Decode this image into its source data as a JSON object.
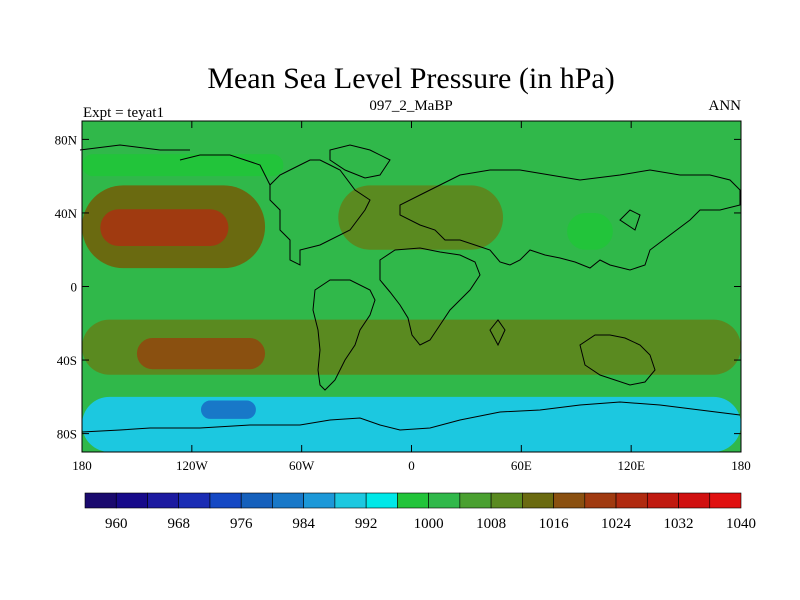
{
  "title": "Mean Sea Level Pressure (in hPa)",
  "left_label": "Expt = teyat1",
  "center_label": "097_2_MaBP",
  "right_label": "ANN",
  "chart_data": {
    "type": "contour-map",
    "variable": "Mean Sea Level Pressure",
    "units": "hPa",
    "xlim": [
      -180,
      180
    ],
    "ylim": [
      -90,
      90
    ],
    "x_ticks": [
      {
        "value": -180,
        "label": "180"
      },
      {
        "value": -120,
        "label": "120W"
      },
      {
        "value": -60,
        "label": "60W"
      },
      {
        "value": 0,
        "label": "0"
      },
      {
        "value": 60,
        "label": "60E"
      },
      {
        "value": 120,
        "label": "120E"
      },
      {
        "value": 180,
        "label": "180"
      }
    ],
    "y_ticks": [
      {
        "value": 80,
        "label": "80N"
      },
      {
        "value": 40,
        "label": "40N"
      },
      {
        "value": 0,
        "label": "0"
      },
      {
        "value": -40,
        "label": "40S"
      },
      {
        "value": -80,
        "label": "80S"
      }
    ],
    "colorbar": {
      "levels": [
        960,
        964,
        968,
        972,
        976,
        980,
        984,
        988,
        992,
        996,
        1000,
        1004,
        1008,
        1012,
        1016,
        1020,
        1024,
        1028,
        1032,
        1036,
        1040
      ],
      "labels": [
        "960",
        "968",
        "976",
        "984",
        "992",
        "1000",
        "1008",
        "1016",
        "1024",
        "1032",
        "1040"
      ],
      "colors": [
        "#1a0a6e",
        "#170a8a",
        "#1c1aa0",
        "#1a2cb4",
        "#1448c4",
        "#1560bc",
        "#1878c8",
        "#1c98d8",
        "#1cc8e0",
        "#00e8e8",
        "#22c43a",
        "#30b84a",
        "#4aa030",
        "#5a8a20",
        "#6a6a10",
        "#8a5010",
        "#a03a10",
        "#b02a10",
        "#c01a10",
        "#d01010",
        "#e01010"
      ]
    },
    "regions": [
      {
        "lon": [
          -180,
          180
        ],
        "lat": [
          -90,
          90
        ],
        "value": 1002,
        "desc": "background near 1000 hPa"
      },
      {
        "lon": [
          -180,
          -80
        ],
        "lat": [
          10,
          55
        ],
        "value": 1012,
        "desc": "North Pacific high"
      },
      {
        "lon": [
          -170,
          -100
        ],
        "lat": [
          22,
          42
        ],
        "value": 1020,
        "desc": "North Pacific high core"
      },
      {
        "lon": [
          -40,
          50
        ],
        "lat": [
          20,
          55
        ],
        "value": 1009,
        "desc": "North Atlantic/Eurasia high"
      },
      {
        "lon": [
          -180,
          180
        ],
        "lat": [
          -48,
          -18
        ],
        "value": 1010,
        "desc": "southern subtropical ridge"
      },
      {
        "lon": [
          -150,
          -80
        ],
        "lat": [
          -45,
          -28
        ],
        "value": 1019,
        "desc": "South Pacific high core"
      },
      {
        "lon": [
          -180,
          180
        ],
        "lat": [
          -90,
          -60
        ],
        "value": 990,
        "desc": "Southern Ocean low belt"
      },
      {
        "lon": [
          -115,
          -85
        ],
        "lat": [
          -72,
          -62
        ],
        "value": 982,
        "desc": "Southern Ocean low core"
      },
      {
        "lon": [
          -180,
          -70
        ],
        "lat": [
          60,
          72
        ],
        "value": 996,
        "desc": "North Pacific/Arctic low"
      },
      {
        "lon": [
          85,
          110
        ],
        "lat": [
          20,
          40
        ],
        "value": 996,
        "desc": "Asian low"
      }
    ]
  }
}
